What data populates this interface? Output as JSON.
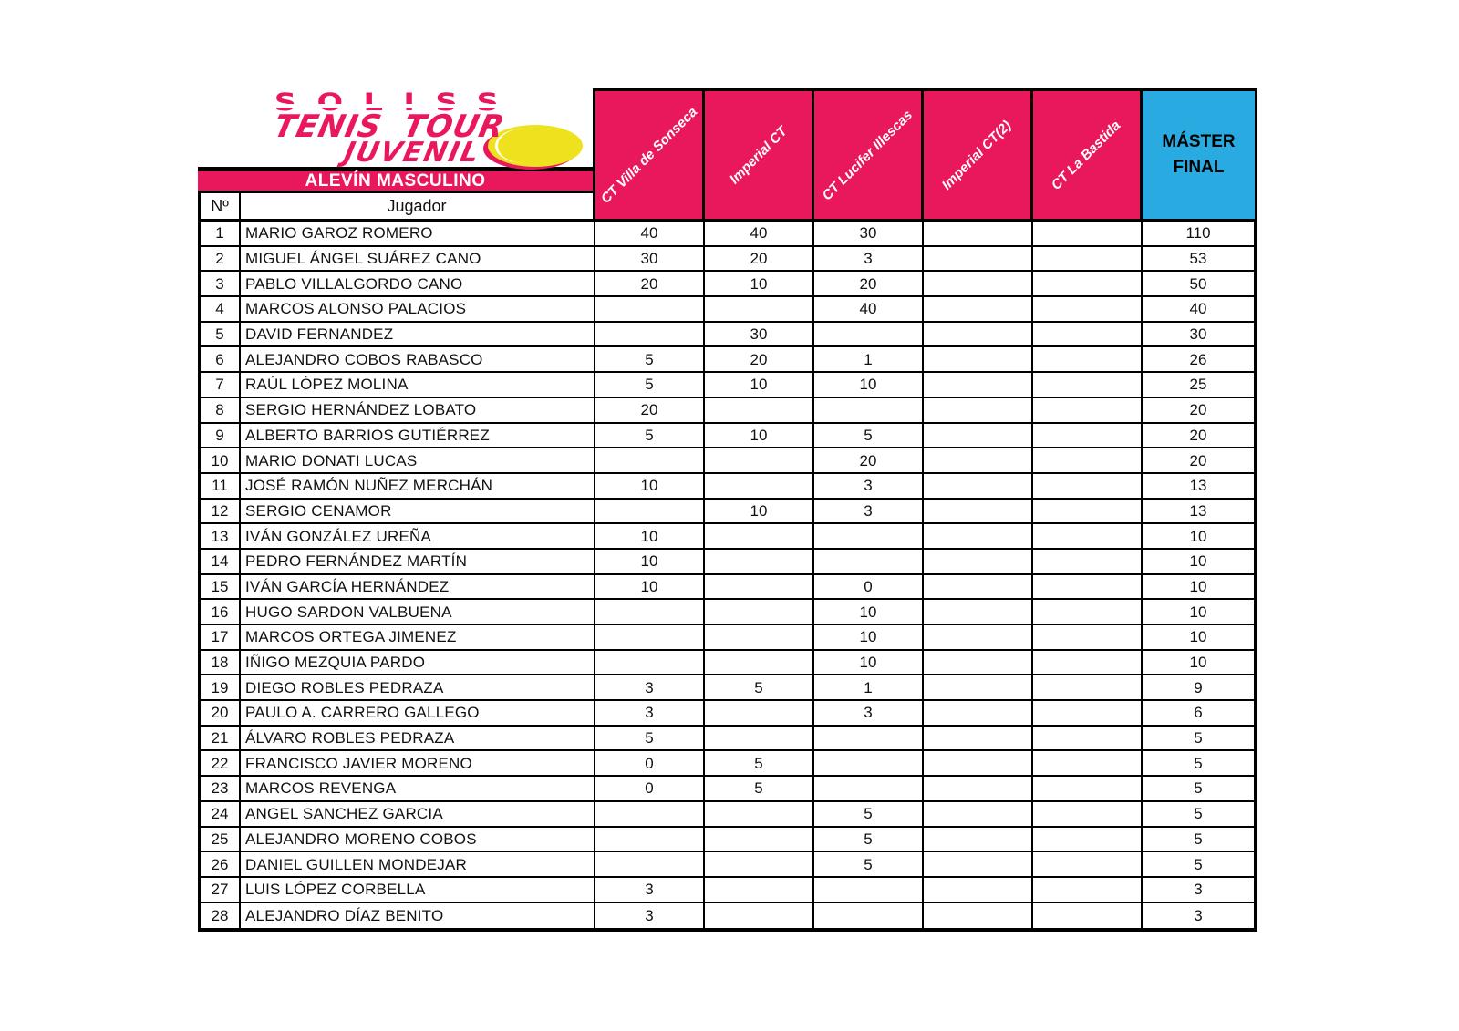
{
  "logo": {
    "line1": "SOLISS",
    "line2": "TENIS TOUR",
    "line3": "JUVENIL",
    "ball_icon": "tennis-ball-icon"
  },
  "category_banner": "ALEVÍN MASCULINO",
  "colors": {
    "pink": "#e9185c",
    "blue": "#29abe2",
    "yellow": "#ede21d"
  },
  "table": {
    "num_header": "Nº",
    "player_header": "Jugador",
    "tournament_columns": [
      "CT Villa de Sonseca",
      "Imperial CT",
      "CT Lucifer Illescas",
      "Imperial CT(2)",
      "CT La Bastida"
    ],
    "final_column": "MÁSTER FINAL",
    "rows": [
      {
        "num": "1",
        "player": "MARIO GAROZ ROMERO",
        "scores": [
          "40",
          "40",
          "30",
          "",
          ""
        ],
        "final": "110"
      },
      {
        "num": "2",
        "player": "MIGUEL ÁNGEL SUÁREZ CANO",
        "scores": [
          "30",
          "20",
          "3",
          "",
          ""
        ],
        "final": "53"
      },
      {
        "num": "3",
        "player": "PABLO VILLALGORDO CANO",
        "scores": [
          "20",
          "10",
          "20",
          "",
          ""
        ],
        "final": "50"
      },
      {
        "num": "4",
        "player": "MARCOS ALONSO PALACIOS",
        "scores": [
          "",
          "",
          "40",
          "",
          ""
        ],
        "final": "40"
      },
      {
        "num": "5",
        "player": "DAVID FERNANDEZ",
        "scores": [
          "",
          "30",
          "",
          "",
          ""
        ],
        "final": "30"
      },
      {
        "num": "6",
        "player": "ALEJANDRO COBOS RABASCO",
        "scores": [
          "5",
          "20",
          "1",
          "",
          ""
        ],
        "final": "26"
      },
      {
        "num": "7",
        "player": "RAÚL LÓPEZ MOLINA",
        "scores": [
          "5",
          "10",
          "10",
          "",
          ""
        ],
        "final": "25"
      },
      {
        "num": "8",
        "player": "SERGIO HERNÁNDEZ LOBATO",
        "scores": [
          "20",
          "",
          "",
          "",
          ""
        ],
        "final": "20"
      },
      {
        "num": "9",
        "player": "ALBERTO BARRIOS GUTIÉRREZ",
        "scores": [
          "5",
          "10",
          "5",
          "",
          ""
        ],
        "final": "20"
      },
      {
        "num": "10",
        "player": "MARIO DONATI LUCAS",
        "scores": [
          "",
          "",
          "20",
          "",
          ""
        ],
        "final": "20"
      },
      {
        "num": "11",
        "player": "JOSÉ RAMÓN NUÑEZ MERCHÁN",
        "scores": [
          "10",
          "",
          "3",
          "",
          ""
        ],
        "final": "13"
      },
      {
        "num": "12",
        "player": "SERGIO CENAMOR",
        "scores": [
          "",
          "10",
          "3",
          "",
          ""
        ],
        "final": "13"
      },
      {
        "num": "13",
        "player": "IVÁN GONZÁLEZ UREÑA",
        "scores": [
          "10",
          "",
          "",
          "",
          ""
        ],
        "final": "10"
      },
      {
        "num": "14",
        "player": "PEDRO FERNÁNDEZ MARTÍN",
        "scores": [
          "10",
          "",
          "",
          "",
          ""
        ],
        "final": "10"
      },
      {
        "num": "15",
        "player": "IVÁN GARCÍA HERNÁNDEZ",
        "scores": [
          "10",
          "",
          "0",
          "",
          ""
        ],
        "final": "10"
      },
      {
        "num": "16",
        "player": "HUGO SARDON VALBUENA",
        "scores": [
          "",
          "",
          "10",
          "",
          ""
        ],
        "final": "10"
      },
      {
        "num": "17",
        "player": "MARCOS ORTEGA JIMENEZ",
        "scores": [
          "",
          "",
          "10",
          "",
          ""
        ],
        "final": "10"
      },
      {
        "num": "18",
        "player": "IÑIGO MEZQUIA PARDO",
        "scores": [
          "",
          "",
          "10",
          "",
          ""
        ],
        "final": "10"
      },
      {
        "num": "19",
        "player": "DIEGO ROBLES PEDRAZA",
        "scores": [
          "3",
          "5",
          "1",
          "",
          ""
        ],
        "final": "9"
      },
      {
        "num": "20",
        "player": "PAULO A. CARRERO GALLEGO",
        "scores": [
          "3",
          "",
          "3",
          "",
          ""
        ],
        "final": "6"
      },
      {
        "num": "21",
        "player": "ÁLVARO ROBLES PEDRAZA",
        "scores": [
          "5",
          "",
          "",
          "",
          ""
        ],
        "final": "5"
      },
      {
        "num": "22",
        "player": "FRANCISCO JAVIER MORENO",
        "scores": [
          "0",
          "5",
          "",
          "",
          ""
        ],
        "final": "5"
      },
      {
        "num": "23",
        "player": "MARCOS REVENGA",
        "scores": [
          "0",
          "5",
          "",
          "",
          ""
        ],
        "final": "5"
      },
      {
        "num": "24",
        "player": "ANGEL SANCHEZ GARCIA",
        "scores": [
          "",
          "",
          "5",
          "",
          ""
        ],
        "final": "5"
      },
      {
        "num": "25",
        "player": "ALEJANDRO MORENO COBOS",
        "scores": [
          "",
          "",
          "5",
          "",
          ""
        ],
        "final": "5"
      },
      {
        "num": "26",
        "player": "DANIEL GUILLEN MONDEJAR",
        "scores": [
          "",
          "",
          "5",
          "",
          ""
        ],
        "final": "5"
      },
      {
        "num": "27",
        "player": "LUIS LÓPEZ CORBELLA",
        "scores": [
          "3",
          "",
          "",
          "",
          ""
        ],
        "final": "3"
      },
      {
        "num": "28",
        "player": "ALEJANDRO DÍAZ BENITO",
        "scores": [
          "3",
          "",
          "",
          "",
          ""
        ],
        "final": "3"
      }
    ]
  }
}
